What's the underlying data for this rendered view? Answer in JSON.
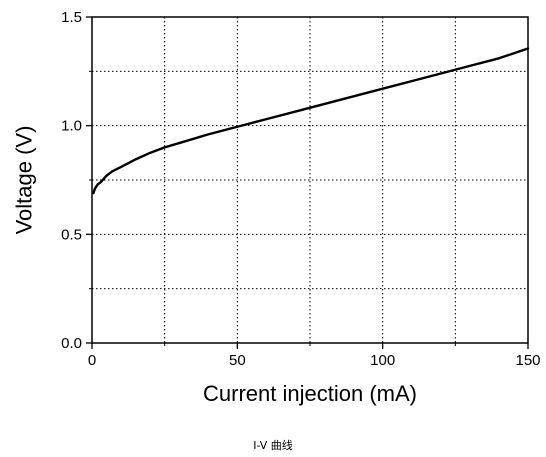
{
  "caption": "I-V 曲线",
  "chart_data": {
    "type": "line",
    "xlabel": "Current injection (mA)",
    "ylabel": "Voltage (V)",
    "xlim": [
      0,
      150
    ],
    "ylim": [
      0,
      1.5
    ],
    "xticks": [
      0,
      50,
      100,
      150
    ],
    "xtick_labels": [
      "0",
      "50",
      "100",
      "150"
    ],
    "yticks": [
      0.0,
      0.5,
      1.0,
      1.5
    ],
    "ytick_labels": [
      "0.0",
      "0.5",
      "1.0",
      "1.5"
    ],
    "minor_xticks": [
      25,
      75,
      125
    ],
    "minor_yticks": [
      0.25,
      0.75,
      1.25
    ],
    "grid": true,
    "grid_style": "dotted",
    "line_color": "#000000",
    "series": [
      {
        "x": [
          0.5,
          1,
          2,
          3,
          5,
          7,
          10,
          15,
          20,
          25,
          30,
          40,
          50,
          60,
          70,
          80,
          90,
          100,
          110,
          120,
          130,
          140,
          150
        ],
        "y": [
          0.69,
          0.71,
          0.73,
          0.74,
          0.77,
          0.79,
          0.81,
          0.845,
          0.875,
          0.9,
          0.92,
          0.96,
          0.995,
          1.03,
          1.065,
          1.1,
          1.135,
          1.17,
          1.205,
          1.24,
          1.275,
          1.31,
          1.355
        ]
      }
    ]
  }
}
